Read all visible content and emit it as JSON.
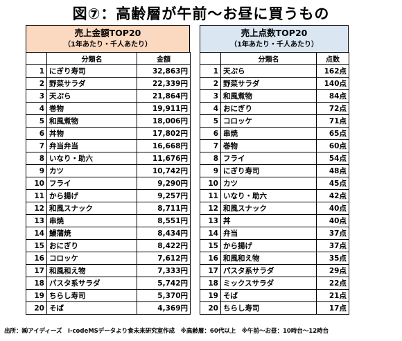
{
  "title": "図⑦：高齢層が午前～お昼に買うもの",
  "left": {
    "title": "売上金額TOP20",
    "subtitle": "（1年あたり・千人あたり）",
    "col_name": "分類名",
    "col_value": "金額",
    "rows": [
      {
        "rank": "1",
        "name": "にぎり寿司",
        "value": "32,863円"
      },
      {
        "rank": "2",
        "name": "野菜サラダ",
        "value": "22,339円"
      },
      {
        "rank": "3",
        "name": "天ぷら",
        "value": "21,864円"
      },
      {
        "rank": "4",
        "name": "巻物",
        "value": "19,911円"
      },
      {
        "rank": "5",
        "name": "和風煮物",
        "value": "18,006円"
      },
      {
        "rank": "6",
        "name": "丼物",
        "value": "17,802円"
      },
      {
        "rank": "7",
        "name": "弁当弁当",
        "value": "16,668円"
      },
      {
        "rank": "8",
        "name": "いなり・助六",
        "value": "11,676円"
      },
      {
        "rank": "9",
        "name": "カツ",
        "value": "10,742円"
      },
      {
        "rank": "10",
        "name": "フライ",
        "value": "9,290円"
      },
      {
        "rank": "11",
        "name": "から揚げ",
        "value": "9,257円"
      },
      {
        "rank": "12",
        "name": "和風スナック",
        "value": "8,711円"
      },
      {
        "rank": "13",
        "name": "串焼",
        "value": "8,551円"
      },
      {
        "rank": "14",
        "name": "鰻蒲焼",
        "value": "8,434円"
      },
      {
        "rank": "15",
        "name": "おにぎり",
        "value": "8,422円"
      },
      {
        "rank": "16",
        "name": "コロッケ",
        "value": "7,612円"
      },
      {
        "rank": "17",
        "name": "和風和え物",
        "value": "7,333円"
      },
      {
        "rank": "18",
        "name": "パスタ系サラダ",
        "value": "5,742円"
      },
      {
        "rank": "19",
        "name": "ちらし寿司",
        "value": "5,370円"
      },
      {
        "rank": "20",
        "name": "そば",
        "value": "4,369円"
      }
    ]
  },
  "right": {
    "title": "売上点数TOP20",
    "subtitle": "（1年あたり・千人あたり）",
    "col_name": "分類名",
    "col_value": "点数",
    "rows": [
      {
        "rank": "1",
        "name": "天ぷら",
        "value": "162点"
      },
      {
        "rank": "2",
        "name": "野菜サラダ",
        "value": "140点"
      },
      {
        "rank": "3",
        "name": "和風煮物",
        "value": "84点"
      },
      {
        "rank": "4",
        "name": "おにぎり",
        "value": "72点"
      },
      {
        "rank": "5",
        "name": "コロッケ",
        "value": "71点"
      },
      {
        "rank": "6",
        "name": "串焼",
        "value": "65点"
      },
      {
        "rank": "7",
        "name": "巻物",
        "value": "60点"
      },
      {
        "rank": "8",
        "name": "フライ",
        "value": "54点"
      },
      {
        "rank": "9",
        "name": "にぎり寿司",
        "value": "48点"
      },
      {
        "rank": "10",
        "name": "カツ",
        "value": "45点"
      },
      {
        "rank": "11",
        "name": "いなり・助六",
        "value": "42点"
      },
      {
        "rank": "12",
        "name": "和風スナック",
        "value": "40点"
      },
      {
        "rank": "13",
        "name": "丼",
        "value": "40点"
      },
      {
        "rank": "14",
        "name": "弁当",
        "value": "37点"
      },
      {
        "rank": "15",
        "name": "から揚げ",
        "value": "37点"
      },
      {
        "rank": "16",
        "name": "和風和え物",
        "value": "35点"
      },
      {
        "rank": "17",
        "name": "パスタ系サラダ",
        "value": "29点"
      },
      {
        "rank": "18",
        "name": "ミックスサラダ",
        "value": "22点"
      },
      {
        "rank": "19",
        "name": "そば",
        "value": "21点"
      },
      {
        "rank": "20",
        "name": "ちらし寿司",
        "value": "17点"
      }
    ]
  },
  "footer": "出所：㈱アイディーズ　i-codeMSデータより食未来研究室作成　※高齢層：60代以上　※午前～お昼：10時台～12時台",
  "colors": {
    "left_header_bg": "#fbd8c0",
    "right_header_bg": "#dbe6f3"
  }
}
